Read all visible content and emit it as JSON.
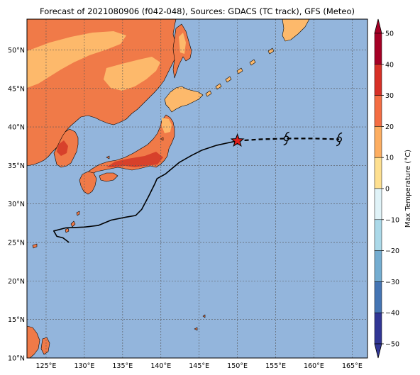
{
  "title": "Forecast of 2021080906 (f042-048), Sources: GDACS (TC track), GFS (Meteo)",
  "map": {
    "lon_range": [
      122.5,
      167
    ],
    "lat_range": [
      10,
      54
    ],
    "ocean_color": "#93b5dc",
    "land_colors": {
      "hot": "#f07a48",
      "warm": "#fdb96b",
      "hottest": "#d7412b"
    },
    "lat_ticks": [
      {
        "value": 10,
        "label": "10°N"
      },
      {
        "value": 15,
        "label": "15°N"
      },
      {
        "value": 20,
        "label": "20°N"
      },
      {
        "value": 25,
        "label": "25°N"
      },
      {
        "value": 30,
        "label": "30°N"
      },
      {
        "value": 35,
        "label": "35°N"
      },
      {
        "value": 40,
        "label": "40°N"
      },
      {
        "value": 45,
        "label": "45°N"
      },
      {
        "value": 50,
        "label": "50°N"
      }
    ],
    "lon_ticks": [
      {
        "value": 125,
        "label": "125°E"
      },
      {
        "value": 130,
        "label": "130°E"
      },
      {
        "value": 135,
        "label": "135°E"
      },
      {
        "value": 140,
        "label": "140°E"
      },
      {
        "value": 145,
        "label": "145°E"
      },
      {
        "value": 150,
        "label": "150°E"
      },
      {
        "value": 155,
        "label": "155°E"
      },
      {
        "value": 160,
        "label": "160°E"
      },
      {
        "value": 165,
        "label": "165°E"
      }
    ]
  },
  "track": {
    "past": [
      [
        128.0,
        25.0
      ],
      [
        127.2,
        25.6
      ],
      [
        126.4,
        25.8
      ],
      [
        126.0,
        26.5
      ],
      [
        127.6,
        26.9
      ],
      [
        130.0,
        27.0
      ],
      [
        131.8,
        27.2
      ],
      [
        133.5,
        27.9
      ],
      [
        135.5,
        28.3
      ],
      [
        136.7,
        28.5
      ],
      [
        137.5,
        29.3
      ],
      [
        138.4,
        31.0
      ],
      [
        139.2,
        32.6
      ],
      [
        139.5,
        33.3
      ],
      [
        140.6,
        33.9
      ],
      [
        142.4,
        35.4
      ],
      [
        144.0,
        36.3
      ],
      [
        145.4,
        37.0
      ],
      [
        147.2,
        37.6
      ],
      [
        150.0,
        38.2
      ]
    ],
    "current": [
      150.0,
      38.2
    ],
    "forecast": [
      [
        150.0,
        38.2
      ],
      [
        153.0,
        38.4
      ],
      [
        156.4,
        38.5
      ],
      [
        160.0,
        38.5
      ],
      [
        163.3,
        38.4
      ]
    ],
    "forecast_symbols": [
      [
        156.4,
        38.5
      ],
      [
        163.3,
        38.4
      ]
    ],
    "line_color": "#000000",
    "star_color": "#e0201b"
  },
  "colorbar": {
    "label": "Max Temperature (°C)",
    "ticks": [
      "50",
      "40",
      "30",
      "20",
      "10",
      "0",
      "−10",
      "−20",
      "−30",
      "−40",
      "−50"
    ],
    "bands": [
      "#a50026",
      "#d73027",
      "#f46d43",
      "#fdae61",
      "#fee090",
      "#ffffbf",
      "#e0f3f8",
      "#abd9e9",
      "#74add1",
      "#4575b4",
      "#313695"
    ],
    "arrow_top_color": "#a50026",
    "arrow_bottom_color": "#313695"
  }
}
